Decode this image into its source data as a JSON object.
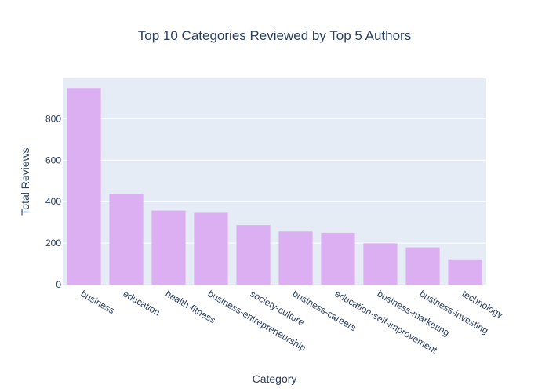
{
  "chart_data": {
    "type": "bar",
    "title": "Top 10 Categories Reviewed by Top 5 Authors",
    "xlabel": "Category",
    "ylabel": "Total Reviews",
    "categories": [
      "business",
      "education",
      "health-fitness",
      "business-entrepreneurship",
      "society-culture",
      "business-careers",
      "education-self-improvement",
      "business-marketing",
      "business-investing",
      "technology"
    ],
    "values": [
      948,
      437,
      357,
      346,
      287,
      256,
      250,
      199,
      179,
      122
    ],
    "ylim": [
      0,
      1000
    ],
    "yticks": [
      0,
      200,
      400,
      600,
      800
    ],
    "grid": true,
    "legend": "none",
    "colors": {
      "bar": "#dcaff3",
      "plot_bg": "#e5ecf6",
      "grid": "#ffffff",
      "text": "#2a3f5f"
    }
  }
}
